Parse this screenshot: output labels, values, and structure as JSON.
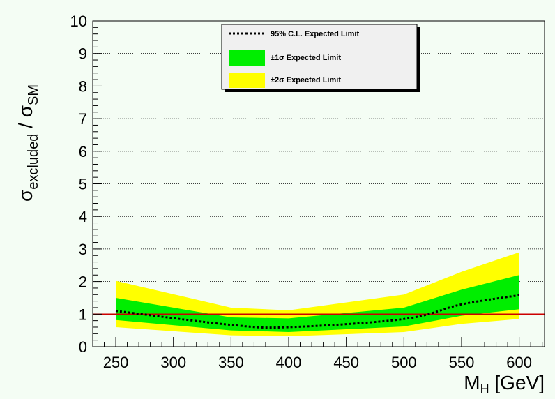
{
  "chart_data": {
    "type": "area",
    "x": [
      250,
      350,
      400,
      500,
      550,
      600
    ],
    "xlabel": "M",
    "xlabel_sub": "H",
    "xlabel_unit": " [GeV]",
    "ylabel": "σ",
    "ylabel_sub": "excluded",
    "ylabel_sep": " / σ",
    "ylabel_sub2": "SM",
    "xlim": [
      230,
      622
    ],
    "ylim": [
      0,
      10
    ],
    "xticks": [
      250,
      300,
      350,
      400,
      450,
      500,
      550,
      600
    ],
    "yticks": [
      0,
      1,
      2,
      3,
      4,
      5,
      6,
      7,
      8,
      9,
      10
    ],
    "grid": "horizontal",
    "reference_line": 1,
    "series": [
      {
        "name": "95% C.L. Expected Limit",
        "style": "dotted-line",
        "values": [
          1.1,
          0.67,
          0.6,
          0.85,
          1.3,
          1.58
        ]
      },
      {
        "name": "±1σ Expected Limit",
        "style": "band",
        "low": [
          0.82,
          0.5,
          0.45,
          0.62,
          0.95,
          1.15
        ],
        "high": [
          1.5,
          0.9,
          0.87,
          1.2,
          1.75,
          2.2
        ]
      },
      {
        "name": "±2σ Expected Limit",
        "style": "band",
        "low": [
          0.6,
          0.35,
          0.32,
          0.45,
          0.7,
          0.85
        ],
        "high": [
          2.02,
          1.2,
          1.12,
          1.6,
          2.3,
          2.9
        ]
      }
    ],
    "legend_position": "top-center",
    "colors": {
      "sigma1": "#00ee00",
      "sigma2": "#ffff00",
      "expected": "#000000",
      "reference": "#cc0000",
      "background": "#f4fdf4",
      "legend_bg": "#f0f0f0"
    }
  }
}
